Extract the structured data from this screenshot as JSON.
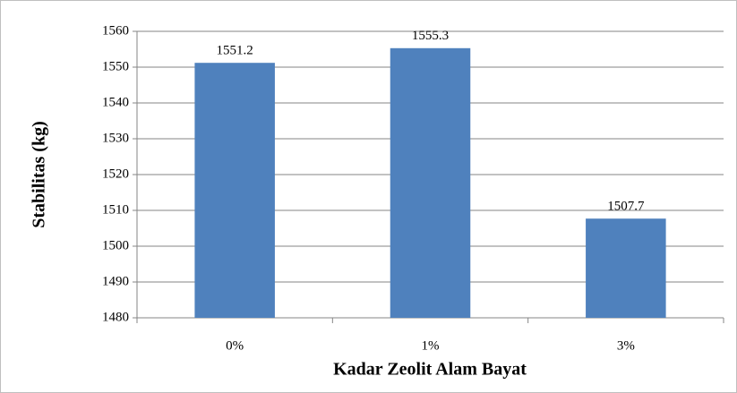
{
  "chart_data": {
    "type": "bar",
    "x_label": "Kadar Zeolit Alam Bayat",
    "y_label": "Stabilitas (kg)",
    "categories": [
      "0%",
      "1%",
      "3%"
    ],
    "values": [
      1551.2,
      1555.3,
      1507.7
    ],
    "color": "#4f81bd",
    "ylim": [
      1480,
      1560
    ],
    "yticks": [
      1480,
      1490,
      1500,
      1510,
      1520,
      1530,
      1540,
      1550,
      1560
    ],
    "grid": true
  }
}
